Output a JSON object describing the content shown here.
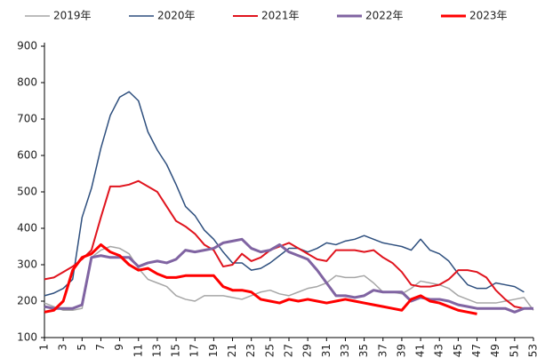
{
  "chart_data": {
    "type": "line",
    "x": [
      1,
      2,
      3,
      4,
      5,
      6,
      7,
      8,
      9,
      10,
      11,
      12,
      13,
      14,
      15,
      16,
      17,
      18,
      19,
      20,
      21,
      22,
      23,
      24,
      25,
      26,
      27,
      28,
      29,
      30,
      31,
      32,
      33,
      34,
      35,
      36,
      37,
      38,
      39,
      40,
      41,
      42,
      43,
      44,
      45,
      46,
      47,
      48,
      49,
      50,
      51,
      52,
      53
    ],
    "xlim": [
      1,
      53
    ],
    "xticks": [
      1,
      3,
      5,
      7,
      9,
      11,
      13,
      15,
      17,
      19,
      21,
      23,
      25,
      27,
      29,
      31,
      33,
      35,
      37,
      39,
      41,
      43,
      45,
      47,
      49,
      51,
      53
    ],
    "ylim": [
      100,
      900
    ],
    "yticks": [
      100,
      200,
      300,
      400,
      500,
      600,
      700,
      800,
      900
    ],
    "legend": "top",
    "series": [
      {
        "name": "2019年",
        "color": "#a6a6a6",
        "width": 1.5,
        "values": [
          195,
          185,
          175,
          175,
          180,
          320,
          340,
          350,
          345,
          330,
          290,
          260,
          250,
          240,
          215,
          205,
          200,
          215,
          215,
          215,
          210,
          205,
          215,
          225,
          230,
          220,
          215,
          225,
          235,
          240,
          250,
          270,
          265,
          265,
          270,
          250,
          225,
          225,
          220,
          235,
          255,
          250,
          245,
          235,
          215,
          205,
          195,
          195,
          195,
          200,
          205,
          210,
          175
        ]
      },
      {
        "name": "2020年",
        "color": "#2e4f7e",
        "width": 1.5,
        "values": [
          215,
          222,
          235,
          260,
          430,
          510,
          620,
          710,
          760,
          775,
          750,
          665,
          615,
          575,
          520,
          460,
          435,
          395,
          370,
          335,
          305,
          305,
          285,
          290,
          305,
          325,
          345,
          345,
          335,
          345,
          360,
          355,
          365,
          370,
          380,
          370,
          360,
          355,
          350,
          340,
          370,
          340,
          330,
          310,
          275,
          245,
          235,
          235,
          250,
          245,
          240,
          225,
          null
        ]
      },
      {
        "name": "2021年",
        "color": "#e0141e",
        "width": 2,
        "values": [
          260,
          265,
          280,
          295,
          315,
          340,
          430,
          515,
          515,
          520,
          530,
          515,
          500,
          460,
          420,
          405,
          385,
          355,
          340,
          295,
          300,
          330,
          310,
          320,
          340,
          350,
          360,
          345,
          330,
          315,
          310,
          340,
          340,
          340,
          335,
          340,
          320,
          305,
          280,
          245,
          240,
          240,
          245,
          260,
          285,
          285,
          280,
          265,
          230,
          205,
          185,
          180,
          null
        ]
      },
      {
        "name": "2022年",
        "color": "#8064a2",
        "width": 3,
        "values": [
          185,
          180,
          180,
          180,
          190,
          320,
          325,
          320,
          320,
          320,
          295,
          305,
          310,
          305,
          315,
          340,
          335,
          340,
          345,
          360,
          365,
          370,
          345,
          335,
          340,
          355,
          335,
          325,
          315,
          285,
          250,
          215,
          215,
          210,
          215,
          230,
          225,
          225,
          225,
          200,
          210,
          205,
          205,
          200,
          190,
          185,
          180,
          180,
          180,
          180,
          170,
          180,
          180
        ]
      },
      {
        "name": "2023年",
        "color": "#ff0000",
        "width": 3,
        "values": [
          170,
          175,
          200,
          285,
          320,
          330,
          355,
          335,
          325,
          300,
          285,
          290,
          275,
          265,
          265,
          270,
          270,
          270,
          270,
          240,
          230,
          230,
          225,
          205,
          200,
          195,
          205,
          200,
          205,
          200,
          195,
          200,
          205,
          200,
          195,
          190,
          185,
          180,
          175,
          205,
          215,
          200,
          195,
          185,
          175,
          170,
          165,
          null,
          null,
          null,
          null,
          null,
          null
        ]
      }
    ]
  }
}
